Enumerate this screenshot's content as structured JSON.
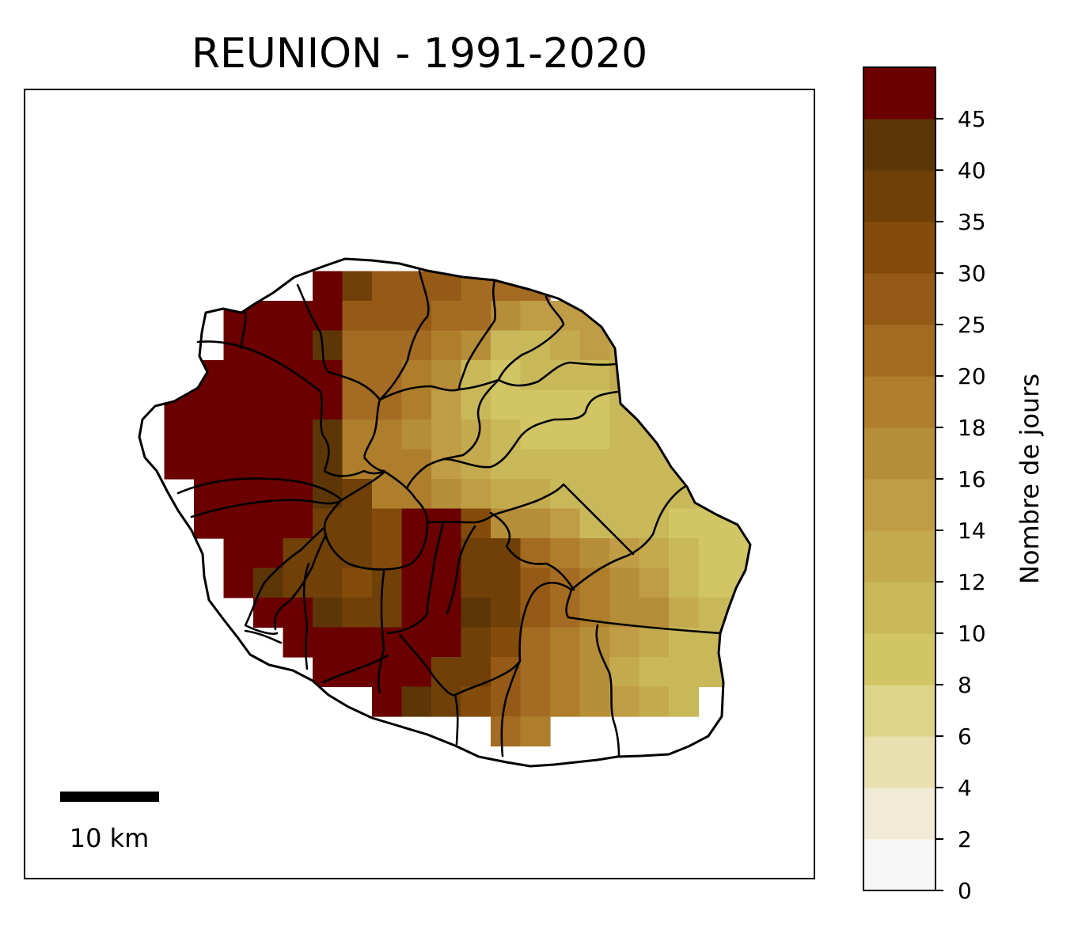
{
  "map": {
    "title": "REUNION - 1991-2020",
    "region": "La Réunion",
    "scale_bar_label": "10 km"
  },
  "colorbar": {
    "label": "Nombre de jours",
    "ticks": [
      "0",
      "2",
      "4",
      "6",
      "8",
      "10",
      "12",
      "14",
      "16",
      "18",
      "20",
      "25",
      "30",
      "35",
      "40",
      "45"
    ],
    "colors": [
      "#f7f7f7",
      "#f0ead6",
      "#e8e0ae",
      "#ded488",
      "#d1c566",
      "#c9b85a",
      "#c3aa4f",
      "#bf9c45",
      "#b68d38",
      "#ae7e2c",
      "#a46b22",
      "#955b16",
      "#844c0b",
      "#704008",
      "#5d3608",
      "#6b0000"
    ]
  },
  "map_grid": {
    "legend": "bin index 0..15 per cell (see colorbar.colors); -1 = no data",
    "cells": [
      "-1 -1 -1 -1 -1 -1 -1 -1 -1 -1 -1 -1 -1 -1 -1 -1 -1 -1 -1 -1 -1 -1 -1",
      "-1 -1 -1 -1 -1 -1 15 13 11 11 11 10 10 10 -1 -1 -1 -1 -1 -1 -1 -1 -1",
      "-1 -1 -1 15 15 15 15 11 11 11 10 10 8 7 7 7 6 -1 -1 -1 -1 -1 -1",
      "-1 -1 -1 15 15 15 14 10 10 10 9 8 5 5 6 7 6 6 -1 -1 -1 -1 -1",
      "-1 15 15 15 15 15 15 10 10 9 8 5 4 5 5 5 6 6 5 -1 -1 -1 -1",
      "-1 15 15 15 15 15 15 10 10 9 7 5 4 4 4 4 5 5 5 5 -1 -1 -1",
      "-1 15 15 15 15 15 14 9 9 8 7 6 5 4 4 4 5 5 5 5 5 -1 -1",
      "-1 15 15 15 15 15 14 9 9 9 7 6 5 5 5 5 5 5 5 5 6 -1 -1",
      "-1 -1 15 15 15 15 14 13 9 9 8 7 6 6 5 5 5 5 5 5 5 4 4",
      "-1 -1 15 15 15 15 13 13 12 15 15 12 8 8 7 5 5 5 4 4 4 3 3",
      "-1 -1 -1 15 15 13 13 13 12 15 15 13 13 10 9 8 7 6 5 4 4 3 3",
      "-1 -1 -1 15 14 13 13 12 13 15 15 13 13 11 10 9 8 7 5 4 4 3 3",
      "-1 -1 -1 -1 15 15 14 13 13 15 15 14 13 11 10 9 8 8 6 5 5 5 -1",
      "-1 -1 -1 -1 -1 15 15 15 15 15 15 13 12 10 9 8 7 6 5 5 5 5 -1",
      "-1 -1 -1 -1 -1 -1 15 15 15 15 13 13 11 10 9 8 6 5 5 5 5 -1 -1",
      "-1 -1 -1 -1 -1 -1 -1 -1 15 14 13 12 11 10 9 8 7 6 5 -1 -1 -1 -1",
      "-1 -1 -1 -1 -1 -1 -1 -1 -1 -1 -1 -1 10 9 -1 -1 -1 -1 -1 -1 -1 -1 -1"
    ]
  }
}
